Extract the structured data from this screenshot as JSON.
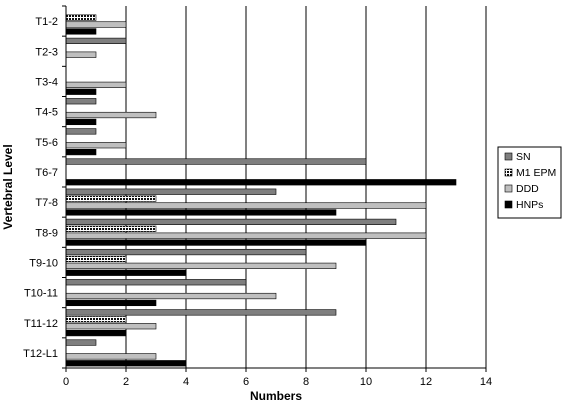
{
  "chart_data": {
    "type": "bar",
    "orientation": "horizontal",
    "xlabel": "Numbers",
    "ylabel": "Vertebral Level",
    "xlim": [
      0,
      14
    ],
    "xticks": [
      0,
      2,
      4,
      6,
      8,
      10,
      12,
      14
    ],
    "grid": "vertical",
    "legend_position": "right",
    "categories": [
      "T1-2",
      "T2-3",
      "T3-4",
      "T4-5",
      "T5-6",
      "T6-7",
      "T7-8",
      "T8-9",
      "T9-10",
      "T10-11",
      "T11-12",
      "T12-L1"
    ],
    "series": [
      {
        "name": "SN",
        "color": "#7f7f7f",
        "pattern": "solid",
        "values": [
          0,
          2,
          0,
          1,
          1,
          10,
          7,
          11,
          8,
          6,
          9,
          1
        ]
      },
      {
        "name": "M1 EPM",
        "color": "#1a1a1a",
        "pattern": "dots",
        "values": [
          1,
          0,
          0,
          0,
          0,
          0,
          3,
          3,
          2,
          0,
          2,
          0
        ]
      },
      {
        "name": "DDD",
        "color": "#bfbfbf",
        "pattern": "solid",
        "values": [
          2,
          1,
          2,
          3,
          2,
          0,
          12,
          12,
          9,
          7,
          3,
          3
        ]
      },
      {
        "name": "HNPs",
        "color": "#000000",
        "pattern": "solid",
        "values": [
          1,
          0,
          1,
          1,
          1,
          13,
          9,
          10,
          4,
          3,
          2,
          4
        ]
      }
    ]
  }
}
